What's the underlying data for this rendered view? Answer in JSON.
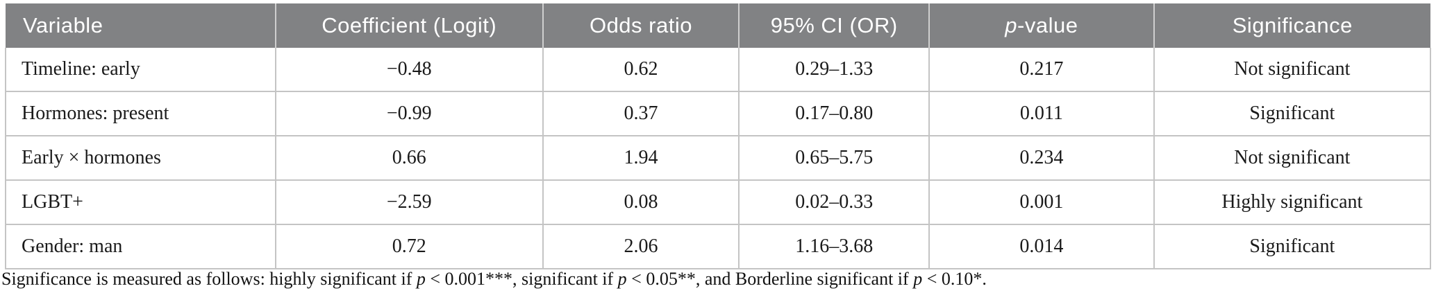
{
  "table": {
    "columns": [
      {
        "label": "Variable"
      },
      {
        "label": "Coefficient (Logit)"
      },
      {
        "label": "Odds ratio"
      },
      {
        "label": "95% CI (OR)"
      },
      {
        "label_italic": "p",
        "label_rest": "-value"
      },
      {
        "label": "Significance"
      }
    ],
    "rows": [
      {
        "cells": [
          "Timeline: early",
          "−0.48",
          "0.62",
          "0.29–1.33",
          "0.217",
          "Not significant"
        ]
      },
      {
        "cells": [
          "Hormones: present",
          "−0.99",
          "0.37",
          "0.17–0.80",
          "0.011",
          "Significant"
        ]
      },
      {
        "cells": [
          "Early × hormones",
          "0.66",
          "1.94",
          "0.65–5.75",
          "0.234",
          "Not significant"
        ]
      },
      {
        "cells": [
          "LGBT+",
          "−2.59",
          "0.08",
          "0.02–0.33",
          "0.001",
          "Highly significant"
        ]
      },
      {
        "cells": [
          "Gender: man",
          "0.72",
          "2.06",
          "1.16–3.68",
          "0.014",
          "Significant"
        ]
      }
    ]
  },
  "footnote": {
    "segments": [
      {
        "text": "Significance is measured as follows: highly significant if ",
        "italic": false
      },
      {
        "text": "p",
        "italic": true
      },
      {
        "text": " < 0.001***, significant if ",
        "italic": false
      },
      {
        "text": "p",
        "italic": true
      },
      {
        "text": " < 0.05**, and Borderline significant if ",
        "italic": false
      },
      {
        "text": "p",
        "italic": true
      },
      {
        "text": " < 0.10*.",
        "italic": false
      }
    ]
  },
  "colors": {
    "header_bg": "#818284",
    "header_text": "#ffffff",
    "body_text": "#1a1a1a",
    "border": "#c4c4c4"
  }
}
